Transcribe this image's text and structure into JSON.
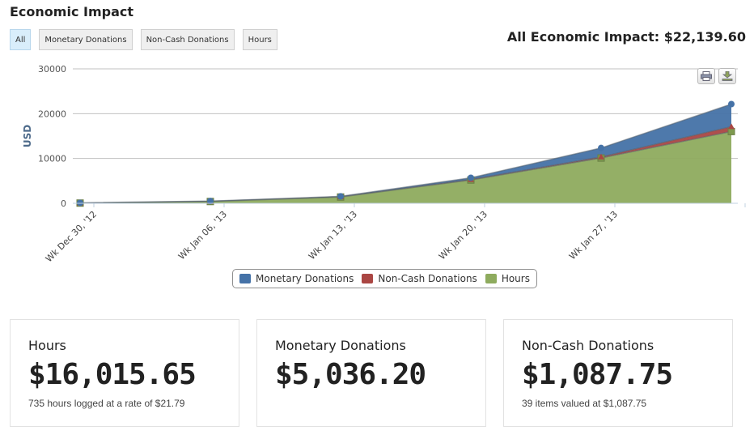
{
  "header": {
    "title": "Economic Impact",
    "total_label": "All Economic Impact: $22,139.60"
  },
  "filters": [
    {
      "label": "All",
      "active": true
    },
    {
      "label": "Monetary Donations",
      "active": false
    },
    {
      "label": "Non-Cash Donations",
      "active": false
    },
    {
      "label": "Hours",
      "active": false
    }
  ],
  "toolbar": {
    "print_icon": "printer-icon",
    "export_icon": "download-icon"
  },
  "chart_data": {
    "type": "area",
    "stacked": true,
    "categories": [
      "Wk Dec 30, '12",
      "Wk Jan 06, '13",
      "Wk Jan 13, '13",
      "Wk Jan 20, '13",
      "Wk Jan 27, '13",
      ""
    ],
    "series": [
      {
        "name": "Hours",
        "color": "#8eab5e",
        "marker_color": "#7e9a4f",
        "values": [
          50,
          400,
          1400,
          5200,
          10100,
          16015.65
        ]
      },
      {
        "name": "Non-Cash Donations",
        "color": "#aa4643",
        "marker_color": "#aa4643",
        "values": [
          0,
          10,
          40,
          100,
          250,
          1087.75
        ]
      },
      {
        "name": "Monetary Donations",
        "color": "#4572a7",
        "marker_color": "#4572a7",
        "values": [
          50,
          90,
          110,
          400,
          2000,
          5036.2
        ]
      }
    ],
    "legend_order": [
      "Monetary Donations",
      "Non-Cash Donations",
      "Hours"
    ],
    "ylabel": "USD",
    "ylim": [
      0,
      30000
    ],
    "yticks": [
      0,
      10000,
      20000,
      30000
    ],
    "grid": true,
    "legend_position": "bottom-center"
  },
  "cards": [
    {
      "title": "Hours",
      "value": "$16,015.65",
      "caption": "735 hours logged at a rate of $21.79"
    },
    {
      "title": "Monetary Donations",
      "value": "$5,036.20",
      "caption": ""
    },
    {
      "title": "Non-Cash Donations",
      "value": "$1,087.75",
      "caption": "39 items valued at $1,087.75"
    }
  ]
}
